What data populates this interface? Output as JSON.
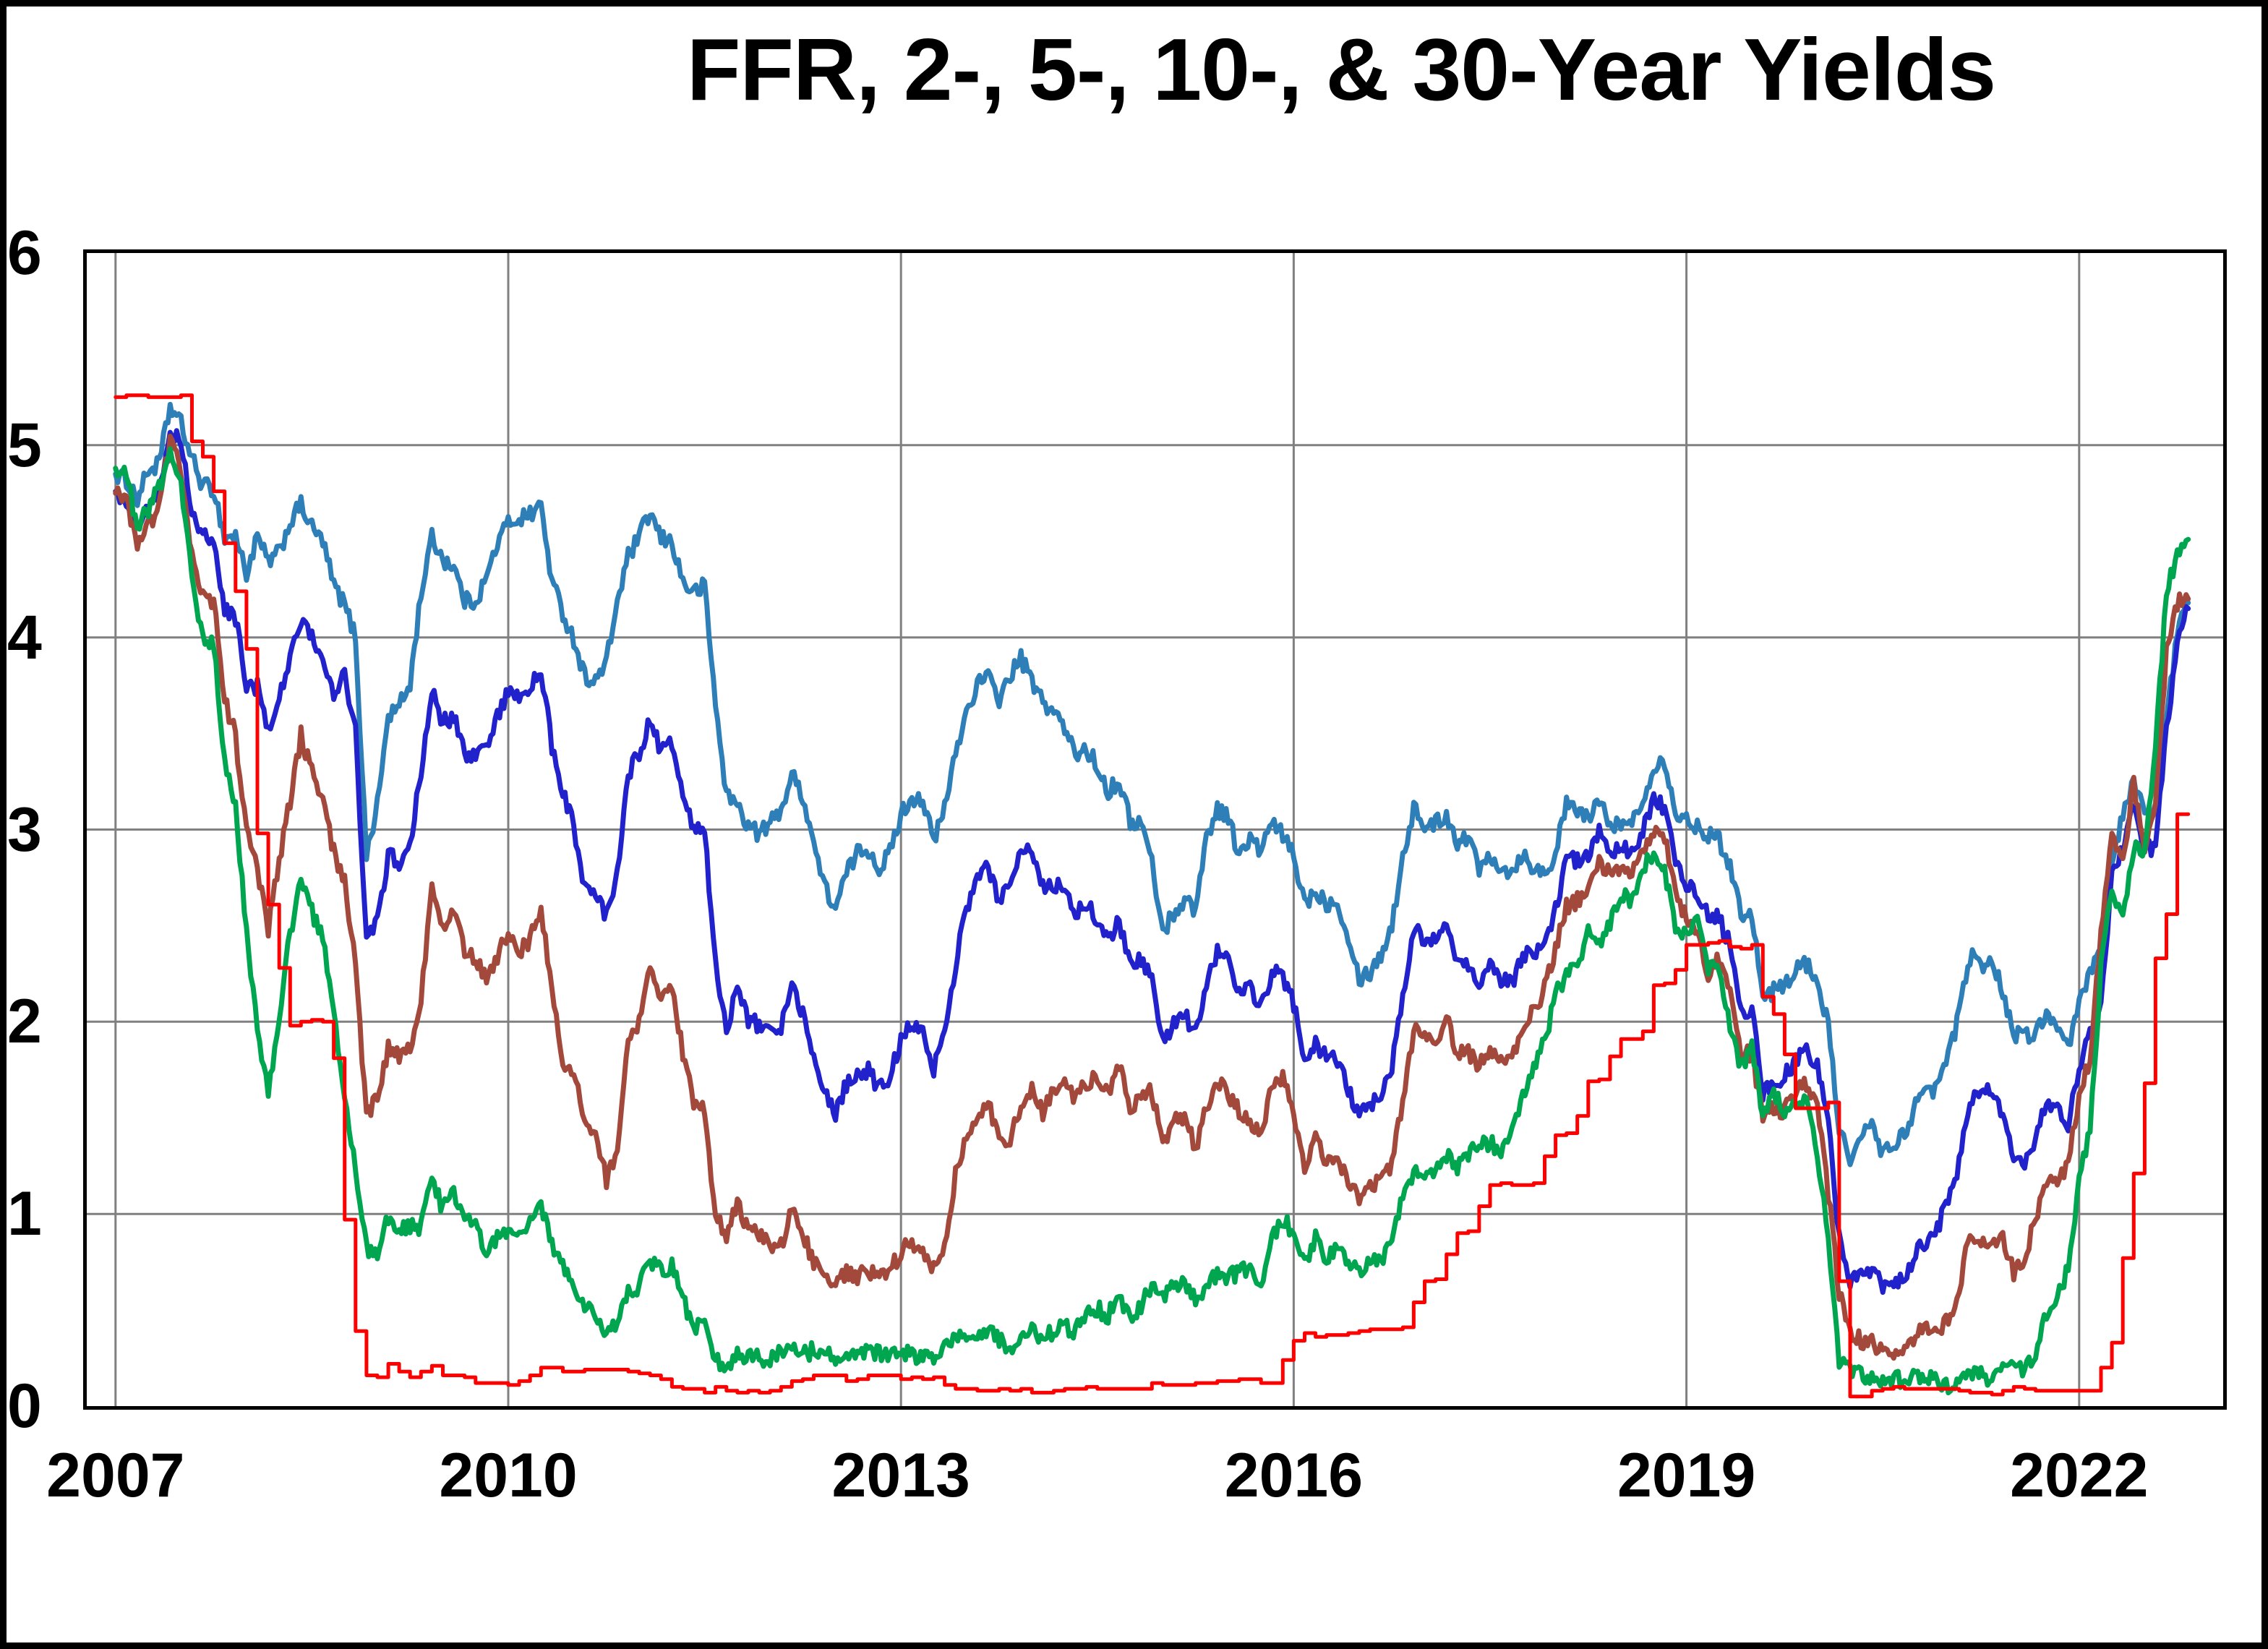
{
  "chart_data": {
    "type": "line",
    "title": "FFR, 2-, 5-, 10-, & 30-Year Yields",
    "background": "#FFFFFF",
    "border_color": "#000000",
    "grid": true,
    "grid_color": "#808080",
    "legend": "none",
    "x_axis": {
      "ticks": [
        "2007",
        "2010",
        "2013",
        "2016",
        "2019",
        "2022"
      ],
      "tick_years": [
        2007,
        2010,
        2013,
        2016,
        2019,
        2022
      ],
      "range": [
        2006.78,
        2023.1
      ]
    },
    "y_axis": {
      "ticks": [
        "0",
        "1",
        "2",
        "3",
        "4",
        "5",
        "6"
      ],
      "range": [
        0,
        6
      ]
    },
    "x_start_year": 2007,
    "x_step": "monthly",
    "units": "percent",
    "series": [
      {
        "id": "30-year",
        "name": "30-Year",
        "color": "#2E7FB8",
        "width": 7,
        "style": "line",
        "noise": 0.045,
        "values": [
          4.85,
          4.82,
          4.72,
          4.87,
          4.9,
          5.2,
          5.11,
          4.93,
          4.79,
          4.77,
          4.52,
          4.53,
          4.33,
          4.52,
          4.39,
          4.44,
          4.6,
          4.69,
          4.57,
          4.5,
          4.27,
          4.17,
          4.0,
          2.87,
          3.13,
          3.59,
          3.64,
          3.76,
          4.23,
          4.52,
          4.41,
          4.37,
          4.19,
          4.19,
          4.31,
          4.49,
          4.6,
          4.62,
          4.64,
          4.69,
          4.29,
          4.13,
          3.99,
          3.8,
          3.77,
          3.87,
          4.19,
          4.42,
          4.52,
          4.65,
          4.51,
          4.5,
          4.29,
          4.23,
          4.27,
          3.65,
          3.18,
          3.13,
          3.02,
          2.98,
          3.03,
          3.11,
          3.28,
          3.18,
          2.93,
          2.7,
          2.59,
          2.77,
          2.88,
          2.9,
          2.8,
          2.88,
          3.08,
          3.17,
          3.16,
          2.93,
          3.11,
          3.4,
          3.61,
          3.76,
          3.79,
          3.68,
          3.8,
          3.89,
          3.77,
          3.66,
          3.62,
          3.52,
          3.39,
          3.42,
          3.33,
          3.2,
          3.26,
          3.04,
          3.04,
          2.83,
          2.46,
          2.57,
          2.63,
          2.59,
          2.96,
          3.11,
          3.07,
          2.86,
          2.95,
          2.89,
          3.03,
          2.97,
          2.86,
          2.62,
          2.68,
          2.62,
          2.63,
          2.45,
          2.23,
          2.26,
          2.35,
          2.5,
          2.86,
          3.11,
          3.02,
          3.03,
          3.08,
          2.94,
          2.96,
          2.8,
          2.88,
          2.8,
          2.78,
          2.88,
          2.8,
          2.77,
          2.88,
          3.13,
          3.09,
          3.07,
          3.13,
          3.05,
          3.01,
          3.04,
          3.15,
          3.34,
          3.36,
          3.1,
          3.04,
          3.02,
          2.98,
          2.94,
          2.82,
          2.57,
          2.57,
          2.12,
          2.16,
          2.19,
          2.28,
          2.3,
          2.22,
          1.97,
          1.46,
          1.27,
          1.38,
          1.49,
          1.31,
          1.36,
          1.42,
          1.57,
          1.62,
          1.67,
          1.82,
          2.04,
          2.34,
          2.3,
          2.32,
          2.16,
          1.94,
          1.92,
          1.94,
          2.06,
          1.94,
          1.85,
          2.1,
          2.25,
          2.41,
          2.81,
          3.07,
          3.25,
          3.1,
          3.13,
          3.56,
          4.04,
          4.18
        ]
      },
      {
        "id": "10-year",
        "name": "10-Year",
        "color": "#2222CC",
        "width": 7,
        "style": "line",
        "noise": 0.045,
        "values": [
          4.76,
          4.72,
          4.56,
          4.69,
          4.75,
          5.1,
          5.0,
          4.67,
          4.52,
          4.53,
          4.15,
          4.1,
          3.74,
          3.74,
          3.51,
          3.68,
          3.88,
          4.1,
          4.01,
          3.89,
          3.69,
          3.81,
          3.53,
          2.42,
          2.52,
          2.87,
          2.82,
          2.93,
          3.29,
          3.72,
          3.56,
          3.59,
          3.4,
          3.39,
          3.4,
          3.59,
          3.73,
          3.69,
          3.73,
          3.85,
          3.42,
          3.2,
          3.01,
          2.7,
          2.65,
          2.54,
          2.76,
          3.29,
          3.39,
          3.58,
          3.41,
          3.46,
          3.17,
          3.0,
          3.0,
          2.3,
          1.98,
          2.15,
          2.01,
          1.98,
          1.97,
          1.97,
          2.17,
          2.05,
          1.8,
          1.62,
          1.53,
          1.68,
          1.72,
          1.75,
          1.65,
          1.72,
          1.91,
          1.98,
          1.96,
          1.76,
          1.93,
          2.3,
          2.58,
          2.74,
          2.81,
          2.62,
          2.72,
          2.9,
          2.86,
          2.71,
          2.72,
          2.71,
          2.56,
          2.6,
          2.54,
          2.42,
          2.53,
          2.3,
          2.33,
          2.21,
          1.88,
          1.98,
          2.04,
          1.94,
          2.2,
          2.36,
          2.32,
          2.17,
          2.17,
          2.07,
          2.26,
          2.24,
          2.09,
          1.78,
          1.89,
          1.81,
          1.81,
          1.64,
          1.5,
          1.56,
          1.63,
          1.76,
          2.14,
          2.49,
          2.43,
          2.42,
          2.48,
          2.3,
          2.3,
          2.19,
          2.32,
          2.21,
          2.2,
          2.36,
          2.35,
          2.4,
          2.58,
          2.86,
          2.84,
          2.87,
          2.98,
          2.91,
          2.89,
          2.89,
          3.0,
          3.15,
          3.12,
          2.83,
          2.71,
          2.68,
          2.57,
          2.53,
          2.4,
          2.07,
          2.06,
          1.63,
          1.7,
          1.71,
          1.81,
          1.86,
          1.76,
          1.5,
          0.87,
          0.66,
          0.67,
          0.73,
          0.62,
          0.65,
          0.68,
          0.79,
          0.87,
          0.93,
          1.08,
          1.26,
          1.61,
          1.64,
          1.62,
          1.52,
          1.32,
          1.28,
          1.37,
          1.58,
          1.56,
          1.47,
          1.76,
          1.93,
          2.13,
          2.75,
          2.9,
          3.14,
          2.9,
          2.9,
          3.52,
          3.98,
          4.15
        ]
      },
      {
        "id": "5-year",
        "name": "5-Year",
        "color": "#A3493C",
        "width": 7,
        "style": "line",
        "noise": 0.045,
        "values": [
          4.75,
          4.71,
          4.48,
          4.59,
          4.67,
          5.03,
          4.88,
          4.43,
          4.2,
          4.2,
          3.67,
          3.49,
          2.98,
          2.78,
          2.48,
          2.84,
          3.15,
          3.49,
          3.3,
          3.14,
          2.88,
          2.73,
          2.29,
          1.52,
          1.6,
          1.87,
          1.82,
          1.86,
          2.13,
          2.71,
          2.46,
          2.57,
          2.37,
          2.33,
          2.23,
          2.34,
          2.48,
          2.36,
          2.43,
          2.58,
          2.18,
          1.79,
          1.76,
          1.47,
          1.41,
          1.18,
          1.35,
          1.93,
          1.99,
          2.26,
          2.11,
          2.17,
          1.84,
          1.58,
          1.54,
          0.98,
          0.9,
          1.06,
          0.91,
          0.89,
          0.84,
          0.83,
          1.02,
          0.89,
          0.76,
          0.71,
          0.62,
          0.71,
          0.67,
          0.71,
          0.67,
          0.7,
          0.81,
          0.85,
          0.82,
          0.71,
          0.84,
          1.2,
          1.4,
          1.52,
          1.6,
          1.37,
          1.37,
          1.58,
          1.65,
          1.52,
          1.64,
          1.7,
          1.59,
          1.68,
          1.7,
          1.63,
          1.77,
          1.55,
          1.62,
          1.64,
          1.37,
          1.47,
          1.52,
          1.35,
          1.54,
          1.68,
          1.63,
          1.54,
          1.49,
          1.39,
          1.67,
          1.7,
          1.52,
          1.22,
          1.38,
          1.27,
          1.3,
          1.17,
          1.07,
          1.13,
          1.18,
          1.27,
          1.6,
          1.96,
          1.92,
          1.9,
          2.01,
          1.84,
          1.84,
          1.77,
          1.87,
          1.78,
          1.8,
          1.98,
          2.05,
          2.18,
          2.38,
          2.6,
          2.63,
          2.7,
          2.82,
          2.78,
          2.77,
          2.77,
          2.89,
          3.0,
          2.95,
          2.68,
          2.54,
          2.49,
          2.24,
          2.33,
          2.19,
          1.83,
          1.84,
          1.49,
          1.56,
          1.53,
          1.64,
          1.68,
          1.56,
          1.11,
          0.59,
          0.39,
          0.34,
          0.33,
          0.27,
          0.27,
          0.28,
          0.38,
          0.39,
          0.39,
          0.45,
          0.59,
          0.92,
          0.86,
          0.82,
          0.89,
          0.69,
          0.77,
          0.98,
          1.18,
          1.16,
          1.26,
          1.62,
          1.81,
          2.46,
          2.96,
          2.82,
          3.25,
          2.88,
          3.16,
          3.93,
          4.18,
          4.2
        ]
      },
      {
        "id": "2-year",
        "name": "2-Year",
        "color": "#00A550",
        "width": 7,
        "style": "line",
        "noise": 0.045,
        "values": [
          4.88,
          4.85,
          4.57,
          4.67,
          4.77,
          4.98,
          4.82,
          4.31,
          4.01,
          3.97,
          3.34,
          3.12,
          2.48,
          1.97,
          1.62,
          2.05,
          2.45,
          2.77,
          2.57,
          2.42,
          2.08,
          1.61,
          1.21,
          0.82,
          0.81,
          0.98,
          0.93,
          0.93,
          0.93,
          1.18,
          1.02,
          1.12,
          0.96,
          0.95,
          0.8,
          0.87,
          0.93,
          0.86,
          0.96,
          1.06,
          0.83,
          0.72,
          0.62,
          0.52,
          0.48,
          0.38,
          0.45,
          0.62,
          0.61,
          0.77,
          0.7,
          0.73,
          0.56,
          0.41,
          0.41,
          0.23,
          0.21,
          0.28,
          0.25,
          0.26,
          0.24,
          0.28,
          0.34,
          0.27,
          0.29,
          0.29,
          0.24,
          0.27,
          0.26,
          0.28,
          0.27,
          0.26,
          0.27,
          0.27,
          0.26,
          0.23,
          0.3,
          0.39,
          0.34,
          0.36,
          0.4,
          0.34,
          0.3,
          0.38,
          0.39,
          0.33,
          0.4,
          0.42,
          0.39,
          0.47,
          0.51,
          0.47,
          0.57,
          0.45,
          0.53,
          0.64,
          0.55,
          0.62,
          0.64,
          0.54,
          0.61,
          0.69,
          0.67,
          0.7,
          0.71,
          0.64,
          0.88,
          0.98,
          0.9,
          0.73,
          0.88,
          0.77,
          0.82,
          0.73,
          0.71,
          0.74,
          0.77,
          0.84,
          1.11,
          1.2,
          1.21,
          1.2,
          1.31,
          1.24,
          1.3,
          1.38,
          1.37,
          1.33,
          1.47,
          1.6,
          1.78,
          1.89,
          2.14,
          2.25,
          2.27,
          2.49,
          2.4,
          2.52,
          2.67,
          2.63,
          2.81,
          2.87,
          2.8,
          2.48,
          2.45,
          2.52,
          2.27,
          2.27,
          1.95,
          1.75,
          1.89,
          1.5,
          1.63,
          1.52,
          1.61,
          1.58,
          1.33,
          0.86,
          0.23,
          0.2,
          0.16,
          0.16,
          0.11,
          0.14,
          0.13,
          0.16,
          0.16,
          0.13,
          0.11,
          0.14,
          0.16,
          0.16,
          0.14,
          0.25,
          0.19,
          0.2,
          0.28,
          0.48,
          0.56,
          0.73,
          1.18,
          1.44,
          2.28,
          2.7,
          2.53,
          2.92,
          2.89,
          3.45,
          4.22,
          4.45,
          4.51
        ]
      },
      {
        "id": "ffr",
        "name": "FFR",
        "color": "#FF0000",
        "width": 5,
        "style": "step",
        "noise": 0,
        "values": [
          5.25,
          5.26,
          5.26,
          5.25,
          5.25,
          5.25,
          5.26,
          5.02,
          4.94,
          4.76,
          4.49,
          4.24,
          3.94,
          2.98,
          2.61,
          2.28,
          1.98,
          2.0,
          2.01,
          2.0,
          1.81,
          0.97,
          0.39,
          0.16,
          0.15,
          0.22,
          0.18,
          0.15,
          0.18,
          0.21,
          0.16,
          0.16,
          0.15,
          0.12,
          0.12,
          0.12,
          0.11,
          0.13,
          0.16,
          0.2,
          0.2,
          0.18,
          0.18,
          0.19,
          0.19,
          0.19,
          0.19,
          0.18,
          0.17,
          0.16,
          0.14,
          0.1,
          0.09,
          0.09,
          0.07,
          0.1,
          0.08,
          0.07,
          0.08,
          0.07,
          0.08,
          0.1,
          0.13,
          0.14,
          0.16,
          0.16,
          0.16,
          0.13,
          0.14,
          0.16,
          0.16,
          0.16,
          0.14,
          0.15,
          0.14,
          0.15,
          0.11,
          0.09,
          0.09,
          0.08,
          0.08,
          0.09,
          0.08,
          0.09,
          0.07,
          0.07,
          0.08,
          0.09,
          0.09,
          0.1,
          0.09,
          0.09,
          0.09,
          0.09,
          0.09,
          0.12,
          0.11,
          0.11,
          0.11,
          0.12,
          0.12,
          0.13,
          0.13,
          0.14,
          0.14,
          0.12,
          0.12,
          0.24,
          0.34,
          0.38,
          0.36,
          0.37,
          0.37,
          0.38,
          0.39,
          0.4,
          0.4,
          0.4,
          0.41,
          0.54,
          0.65,
          0.66,
          0.79,
          0.9,
          0.91,
          1.04,
          1.15,
          1.16,
          1.15,
          1.15,
          1.16,
          1.3,
          1.41,
          1.42,
          1.51,
          1.69,
          1.7,
          1.82,
          1.91,
          1.91,
          1.95,
          2.19,
          2.2,
          2.27,
          2.4,
          2.4,
          2.41,
          2.42,
          2.39,
          2.38,
          2.4,
          2.13,
          2.04,
          1.83,
          1.55,
          1.55,
          1.55,
          1.58,
          0.65,
          0.05,
          0.05,
          0.08,
          0.09,
          0.1,
          0.09,
          0.09,
          0.09,
          0.09,
          0.09,
          0.08,
          0.07,
          0.07,
          0.06,
          0.08,
          0.1,
          0.09,
          0.08,
          0.08,
          0.08,
          0.08,
          0.08,
          0.08,
          0.2,
          0.33,
          0.77,
          1.21,
          1.68,
          2.33,
          2.56,
          3.08,
          3.08
        ]
      }
    ]
  }
}
